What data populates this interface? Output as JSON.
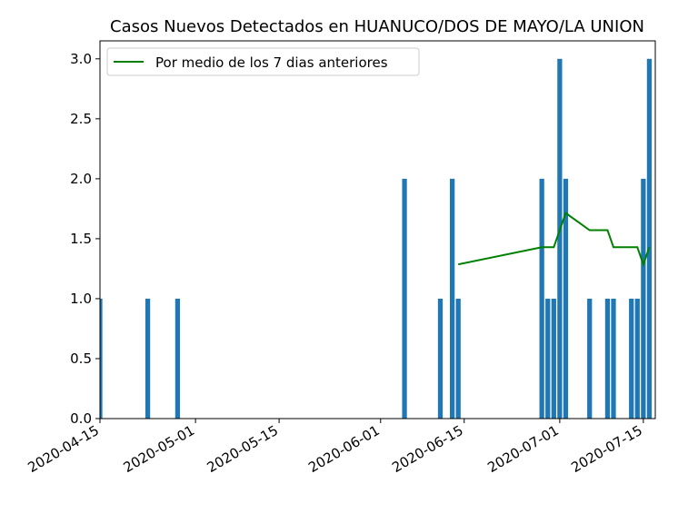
{
  "chart_data": {
    "type": "bar",
    "title": "Casos Nuevos Detectados en HUANUCO/DOS DE MAYO/LA UNION",
    "xlabel": "",
    "ylabel": "",
    "x_range": [
      "2020-04-15",
      "2020-07-17"
    ],
    "ylim": [
      0,
      3.15
    ],
    "x_ticks": [
      "2020-04-15",
      "2020-05-01",
      "2020-05-15",
      "2020-06-01",
      "2020-06-15",
      "2020-07-01",
      "2020-07-15"
    ],
    "y_ticks": [
      "0.0",
      "0.5",
      "1.0",
      "1.5",
      "2.0",
      "2.5",
      "3.0"
    ],
    "grid": false,
    "legend_position": "top-left",
    "colors": {
      "bars": "#1f77b4",
      "line": "#008000"
    },
    "series": [
      {
        "type": "bar",
        "values": [
          {
            "date": "2020-04-15",
            "value": 1
          },
          {
            "date": "2020-04-23",
            "value": 1
          },
          {
            "date": "2020-04-28",
            "value": 1
          },
          {
            "date": "2020-06-05",
            "value": 2
          },
          {
            "date": "2020-06-11",
            "value": 1
          },
          {
            "date": "2020-06-13",
            "value": 2
          },
          {
            "date": "2020-06-14",
            "value": 1
          },
          {
            "date": "2020-06-28",
            "value": 2
          },
          {
            "date": "2020-06-29",
            "value": 1
          },
          {
            "date": "2020-06-30",
            "value": 1
          },
          {
            "date": "2020-07-01",
            "value": 3
          },
          {
            "date": "2020-07-02",
            "value": 2
          },
          {
            "date": "2020-07-06",
            "value": 1
          },
          {
            "date": "2020-07-09",
            "value": 1
          },
          {
            "date": "2020-07-10",
            "value": 1
          },
          {
            "date": "2020-07-13",
            "value": 1
          },
          {
            "date": "2020-07-14",
            "value": 1
          },
          {
            "date": "2020-07-15",
            "value": 2
          },
          {
            "date": "2020-07-16",
            "value": 3
          }
        ]
      },
      {
        "type": "line",
        "name": "Por medio de los 7 dias anteriores",
        "values": [
          {
            "date": "2020-06-14",
            "value": 1.286
          },
          {
            "date": "2020-06-28",
            "value": 1.429
          },
          {
            "date": "2020-06-30",
            "value": 1.429
          },
          {
            "date": "2020-07-02",
            "value": 1.714
          },
          {
            "date": "2020-07-06",
            "value": 1.571
          },
          {
            "date": "2020-07-09",
            "value": 1.571
          },
          {
            "date": "2020-07-10",
            "value": 1.429
          },
          {
            "date": "2020-07-14",
            "value": 1.429
          },
          {
            "date": "2020-07-15",
            "value": 1.286
          },
          {
            "date": "2020-07-16",
            "value": 1.429
          }
        ]
      }
    ]
  }
}
